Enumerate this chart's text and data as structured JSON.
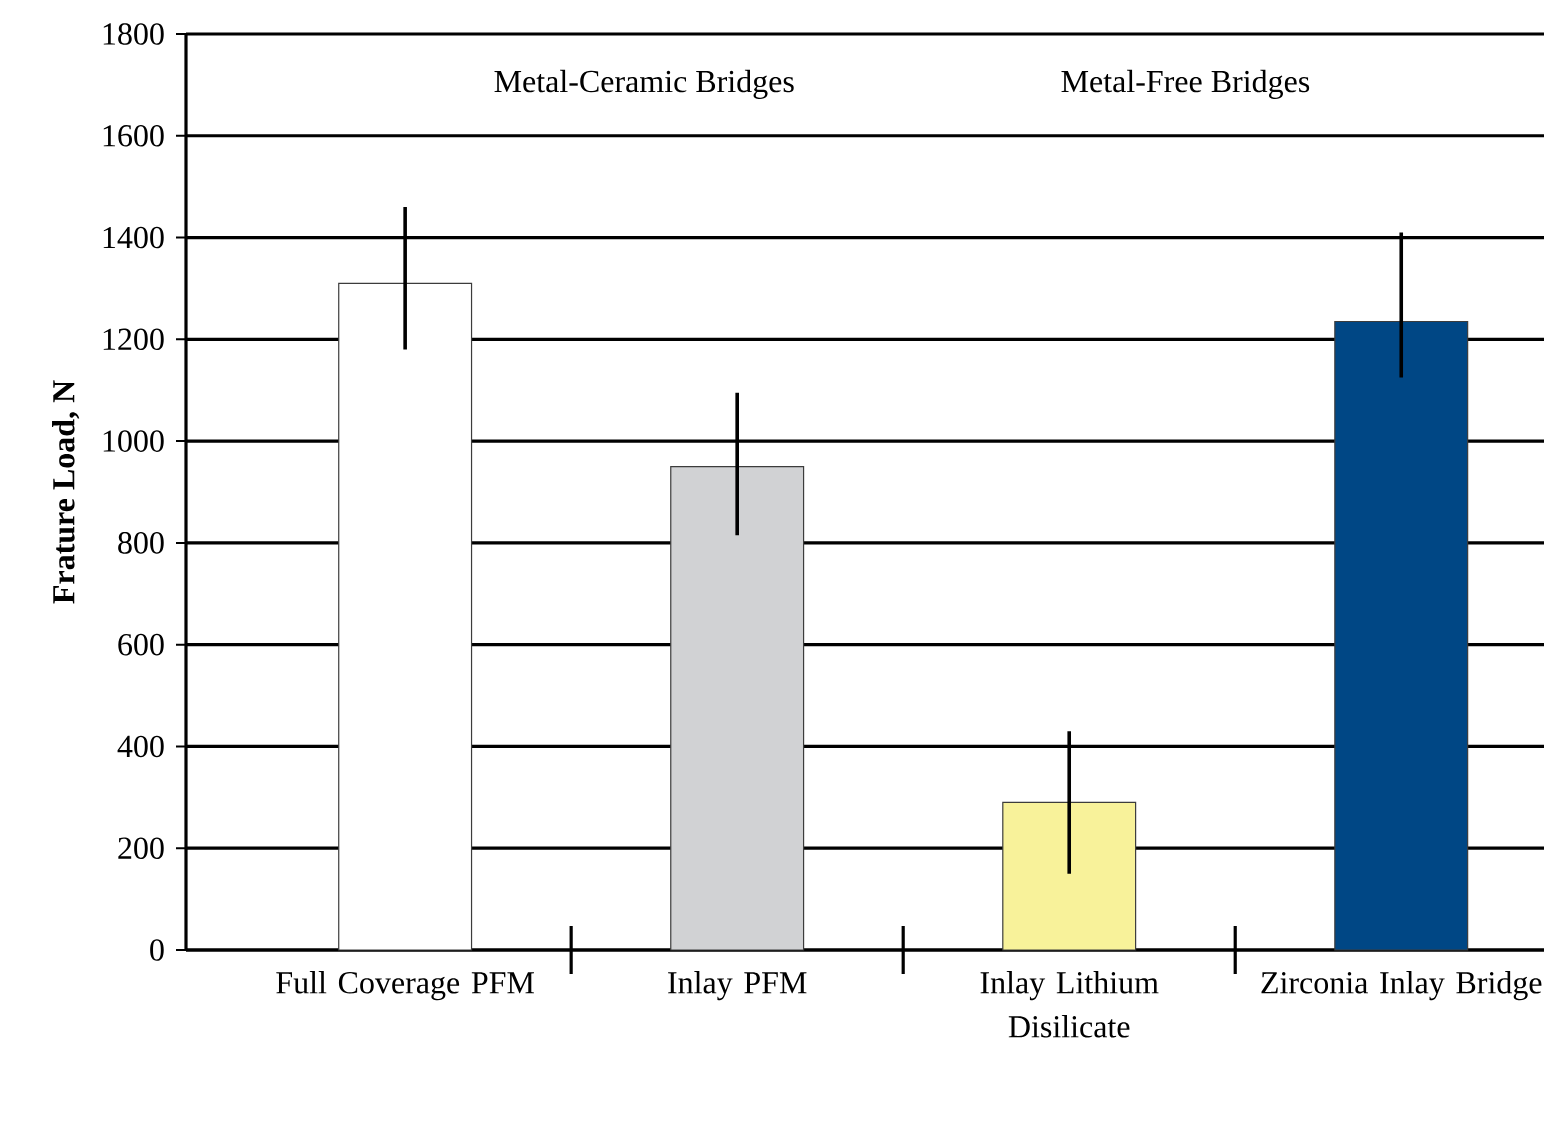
{
  "chart_data": {
    "type": "bar",
    "ylabel": "Frature Load, N",
    "categories": [
      "Full Coverage PFM",
      "Inlay PFM",
      "Inlay Lithium Disilicate",
      "Zirconia Inlay Bridge"
    ],
    "values": [
      1310,
      950,
      290,
      1235
    ],
    "colors": [
      "#ffffff",
      "#d1d2d4",
      "#f8f29a",
      "#004785"
    ],
    "errors": [
      [
        1180,
        1460
      ],
      [
        815,
        1095
      ],
      [
        150,
        430
      ],
      [
        1125,
        1410
      ]
    ],
    "ylim": [
      0,
      1800
    ],
    "yticks": [
      0,
      200,
      400,
      600,
      800,
      1000,
      1200,
      1400,
      1600,
      1800
    ],
    "grid": "y",
    "annotations": [
      "Metal-Ceramic Bridges",
      "Metal-Free Bridges"
    ]
  }
}
